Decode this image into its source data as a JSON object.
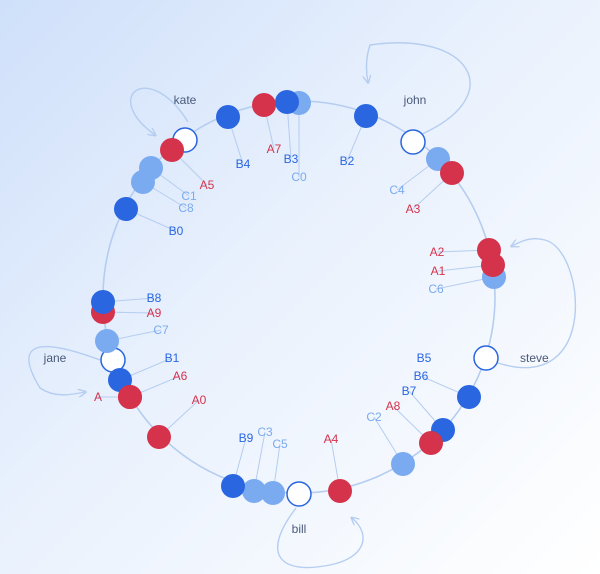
{
  "colors": {
    "ring": "#b5cdf0",
    "red": "#d4334b",
    "blue": "#2a66e0",
    "light_blue": "#7aaaf0",
    "label_dark": "#4a5a7a"
  },
  "servers": [
    {
      "id": "kate",
      "label": "kate"
    },
    {
      "id": "john",
      "label": "john"
    },
    {
      "id": "steve",
      "label": "steve"
    },
    {
      "id": "bill",
      "label": "bill"
    },
    {
      "id": "jane",
      "label": "jane"
    }
  ],
  "keys": [
    {
      "id": "A",
      "label": "A",
      "group": "red"
    },
    {
      "id": "A0",
      "label": "A0",
      "group": "red"
    },
    {
      "id": "A1",
      "label": "A1",
      "group": "red"
    },
    {
      "id": "A2",
      "label": "A2",
      "group": "red"
    },
    {
      "id": "A3",
      "label": "A3",
      "group": "red"
    },
    {
      "id": "A4",
      "label": "A4",
      "group": "red"
    },
    {
      "id": "A5",
      "label": "A5",
      "group": "red"
    },
    {
      "id": "A6",
      "label": "A6",
      "group": "red"
    },
    {
      "id": "A7",
      "label": "A7",
      "group": "red"
    },
    {
      "id": "A8",
      "label": "A8",
      "group": "red"
    },
    {
      "id": "A9",
      "label": "A9",
      "group": "red"
    },
    {
      "id": "B0",
      "label": "B0",
      "group": "blue"
    },
    {
      "id": "B1",
      "label": "B1",
      "group": "blue"
    },
    {
      "id": "B2",
      "label": "B2",
      "group": "blue"
    },
    {
      "id": "B3",
      "label": "B3",
      "group": "blue"
    },
    {
      "id": "B4",
      "label": "B4",
      "group": "blue"
    },
    {
      "id": "B5",
      "label": "B5",
      "group": "blue"
    },
    {
      "id": "B6",
      "label": "B6",
      "group": "blue"
    },
    {
      "id": "B7",
      "label": "B7",
      "group": "blue"
    },
    {
      "id": "B8",
      "label": "B8",
      "group": "blue"
    },
    {
      "id": "B9",
      "label": "B9",
      "group": "blue"
    },
    {
      "id": "C0",
      "label": "C0",
      "group": "light"
    },
    {
      "id": "C1",
      "label": "C1",
      "group": "light"
    },
    {
      "id": "C2",
      "label": "C2",
      "group": "light"
    },
    {
      "id": "C3",
      "label": "C3",
      "group": "light"
    },
    {
      "id": "C4",
      "label": "C4",
      "group": "light"
    },
    {
      "id": "C5",
      "label": "C5",
      "group": "light"
    },
    {
      "id": "C6",
      "label": "C6",
      "group": "light"
    },
    {
      "id": "C7",
      "label": "C7",
      "group": "light"
    },
    {
      "id": "C8",
      "label": "C8",
      "group": "light"
    }
  ]
}
